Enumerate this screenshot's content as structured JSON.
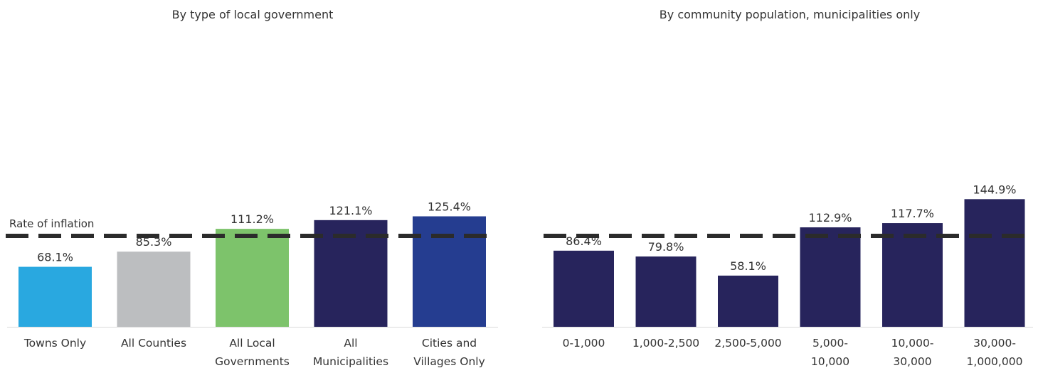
{
  "colors": {
    "towns": "#29a8e0",
    "counties": "#bcbec0",
    "local_govs": "#7dc36b",
    "municipalities": "#27245c",
    "cities_villages": "#253d90",
    "population_bars": "#27245c",
    "inflation_line": "#2b2b2b",
    "text": "#333333"
  },
  "chart_data": [
    {
      "type": "bar",
      "title": "By type of local government",
      "categories": [
        [
          "Towns Only"
        ],
        [
          "All Counties"
        ],
        [
          "All Local",
          "Governments"
        ],
        [
          "All",
          "Municipalities"
        ],
        [
          "Cities and",
          "Villages Only"
        ]
      ],
      "values": [
        68.1,
        85.3,
        111.2,
        121.1,
        125.4
      ],
      "value_labels": [
        "68.1%",
        "85.3%",
        "111.2%",
        "121.1%",
        "125.4%"
      ],
      "bar_colors": [
        "#29a8e0",
        "#bcbec0",
        "#7dc36b",
        "#27245c",
        "#253d90"
      ],
      "reference_line": {
        "label": "Rate of inflation",
        "style": "dashed"
      },
      "ylim": [
        0,
        150
      ]
    },
    {
      "type": "bar",
      "title": "By community population, municipalities only",
      "categories": [
        [
          "0-1,000"
        ],
        [
          "1,000-2,500"
        ],
        [
          "2,500-5,000"
        ],
        [
          "5,000-",
          "10,000"
        ],
        [
          "10,000-",
          "30,000"
        ],
        [
          "30,000-",
          "1,000,000"
        ]
      ],
      "values": [
        86.4,
        79.8,
        58.1,
        112.9,
        117.7,
        144.9
      ],
      "value_labels": [
        "86.4%",
        "79.8%",
        "58.1%",
        "112.9%",
        "117.7%",
        "144.9%"
      ],
      "bar_colors": [
        "#27245c",
        "#27245c",
        "#27245c",
        "#27245c",
        "#27245c",
        "#27245c"
      ],
      "reference_line": {
        "label": "",
        "style": "dashed"
      },
      "ylim": [
        0,
        150
      ]
    }
  ]
}
